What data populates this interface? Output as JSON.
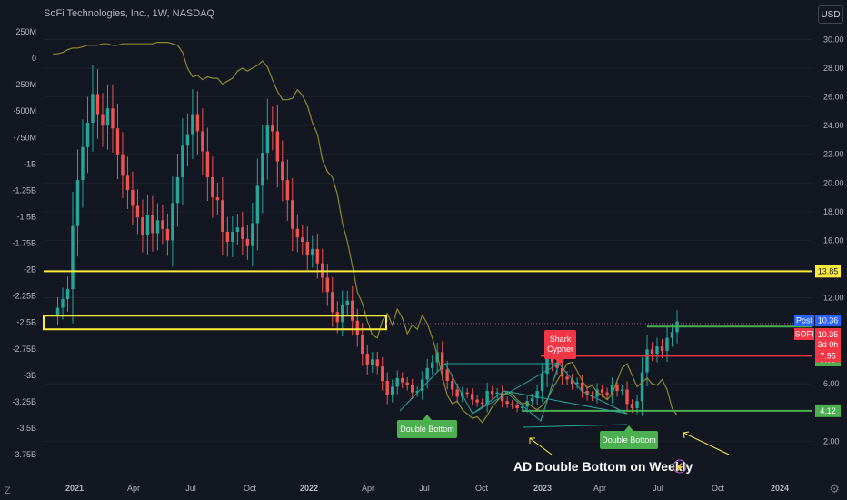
{
  "header": {
    "title": "SoFi Technologies, Inc., 1W, NASDAQ",
    "currency_button": "USD",
    "left_corner": "Z"
  },
  "annotations": {
    "shark": "Shark\nCypher",
    "double_bottom_1": "Double Bottom",
    "double_bottom_2": "Double Bottom",
    "caption": "AD Double Bottom on Weekly"
  },
  "price_badges": {
    "post_label": "Post",
    "post_value": "10.36",
    "sofi_label": "SOFI",
    "sofi_value": "10.35",
    "sofi_countdown": "3d 0h",
    "level_13_85": "13.85",
    "level_9_99": "9.99",
    "level_7_95": "7.95",
    "level_4_12": "4.12"
  },
  "colors": {
    "background": "#131722",
    "up": "#26a69a",
    "down": "#ef5350",
    "ad_line": "#8b8a2c",
    "yellow_level": "#ffeb3b",
    "green_level": "#4caf50",
    "red_level": "#f23645",
    "pattern": "#26a69a"
  },
  "chart_data": {
    "type": "candlestick",
    "title": "SoFi Technologies, Inc., 1W, NASDAQ",
    "x_tick_labels": [
      "2021",
      "Apr",
      "Jul",
      "Oct",
      "2022",
      "Apr",
      "Jul",
      "Oct",
      "2023",
      "Apr",
      "Jul",
      "Oct",
      "2024"
    ],
    "right_axis": {
      "label": "USD",
      "ticks": [
        "30.00",
        "28.00",
        "26.00",
        "24.00",
        "22.00",
        "20.00",
        "18.00",
        "16.00",
        "12.00",
        "6.00",
        "2.00"
      ],
      "ylim": [
        0.5,
        30.6
      ]
    },
    "left_axis": {
      "label": "Accumulation/Distribution",
      "ticks": [
        "250M",
        "0",
        "-250M",
        "-500M",
        "-750M",
        "-1B",
        "-1.25B",
        "-1.5B",
        "-1.75B",
        "-2B",
        "-2.25B",
        "-2.5B",
        "-2.75B",
        "-3B",
        "-3.25B",
        "-3.5B",
        "-3.75B"
      ]
    },
    "price_close_series": [
      10.8,
      11.3,
      11.9,
      12.6,
      17,
      20.2,
      22.5,
      24.2,
      26.2,
      24.8,
      24,
      25.2,
      23.8,
      22,
      20.5,
      19.5,
      18.4,
      17.6,
      16.4,
      17.8,
      16.5,
      17.4,
      16.8,
      16,
      18.6,
      20.4,
      22.6,
      23.4,
      24.8,
      23.6,
      22.2,
      20.4,
      19,
      18.8,
      16.6,
      15.9,
      16.6,
      16.9,
      16.1,
      15.6,
      17.2,
      19.8,
      22.1,
      24,
      23.6,
      21.5,
      20.2,
      18.8,
      16.8,
      16.2,
      15.9,
      15,
      15.4,
      14.4,
      13.4,
      12.4,
      11,
      10.3,
      11.5,
      11.8,
      10.4,
      9.4,
      8.1,
      7.3,
      7.7,
      7.2,
      6.2,
      5.2,
      5.8,
      6.4,
      6.1,
      5.9,
      5.4,
      5.5,
      6.3,
      7.1,
      7.5,
      8.2,
      7,
      6.2,
      5.6,
      5.1,
      5.4,
      5.3,
      4.9,
      4.7,
      4.6,
      5.5,
      5.3,
      5.4,
      4.8,
      4.6,
      4.5,
      4.3,
      4.4,
      4.8,
      5,
      5.5,
      6.7,
      8.2,
      7.5,
      7.1,
      6.5,
      6.3,
      6,
      6.1,
      5.5,
      5.2,
      5.1,
      5.6,
      5.4,
      5.2,
      5.9,
      5.5,
      5.6,
      4.6,
      4.3,
      4.8,
      6.8,
      8.4,
      8.1,
      8.6,
      8.3,
      9.2,
      9.6,
      10.35
    ],
    "ad_series": [
      29,
      29,
      29.1,
      29.3,
      29.4,
      29.4,
      29.5,
      29.6,
      29.6,
      29.6,
      29.7,
      29.7,
      29.6,
      29.6,
      29.7,
      29.7,
      29.7,
      29.7,
      29.7,
      29.7,
      29.7,
      29.8,
      29.8,
      29.8,
      29.7,
      29.6,
      29.1,
      28,
      27.4,
      27.5,
      27.2,
      27.4,
      27.3,
      27.3,
      26.9,
      27.1,
      27.3,
      27.8,
      28,
      27.8,
      28,
      28.2,
      28.5,
      28.1,
      27.2,
      26.4,
      25.8,
      25.8,
      25.9,
      26.5,
      26.1,
      25.4,
      24.2,
      23.4,
      21.6,
      20.8,
      20.4,
      19.2,
      17.2,
      15.9,
      14.2,
      12.4,
      11.6,
      10.4,
      9.4,
      9.2,
      10.4,
      10.9,
      10.1,
      11.2,
      10.6,
      9.5,
      10.1,
      9.8,
      10.8,
      10.2,
      9.2,
      8,
      6.5,
      5.2,
      4.6,
      4.8,
      4.2,
      3.9,
      3.6,
      3.7,
      3.3,
      3.8,
      4.4,
      4.8,
      5.2,
      5.4,
      5.3,
      4.9,
      4.6,
      4.7,
      4.4,
      4.2,
      4.5,
      4.9,
      5.6,
      6.2,
      6.8,
      7.4,
      7.5,
      6.9,
      6.2,
      5.7,
      5.9,
      5.4,
      5.2,
      4.9,
      5.3,
      6.2,
      7.1,
      7.4,
      6.6,
      5.8,
      6.1,
      6.4,
      6,
      5.9,
      6.3,
      5.6,
      4.3,
      3.8
    ],
    "levels": [
      13.85,
      9.99,
      7.95,
      4.12
    ],
    "zone": [
      9.8,
      10.75
    ],
    "legend": "none",
    "grid": true
  }
}
